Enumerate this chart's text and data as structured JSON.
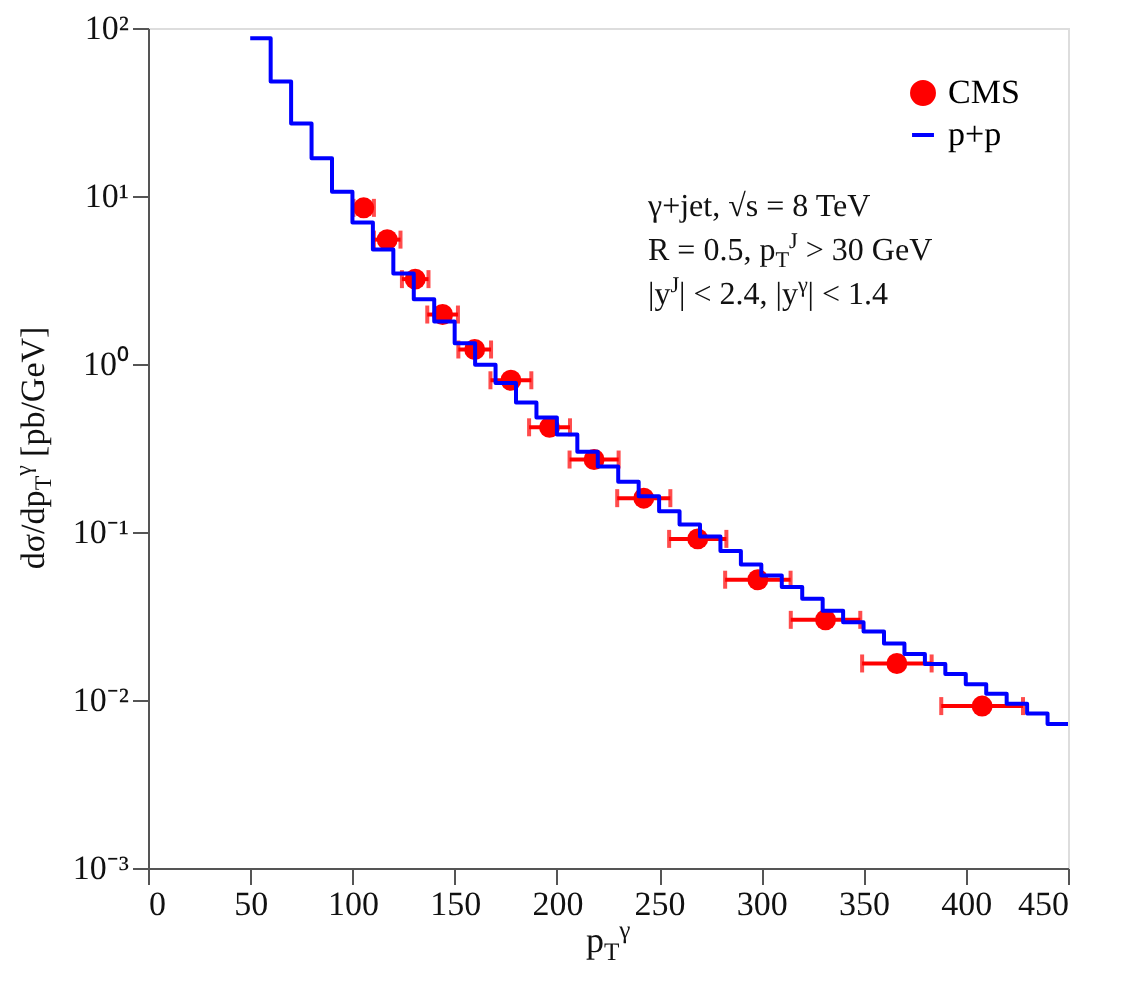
{
  "chart_data": {
    "type": "scatter",
    "xlabel": "p$_{T}$$^{γ}$",
    "ylabel": "dσ/dp$_{T}$$^{γ}$ [pb/GeV]",
    "xlim": [
      0,
      450
    ],
    "xticks": [
      0,
      50,
      100,
      150,
      200,
      250,
      300,
      350,
      400,
      450
    ],
    "ylim": [
      0.001,
      100
    ],
    "yticks": [
      {
        "value": 0.001,
        "label": "10⁻³"
      },
      {
        "value": 0.01,
        "label": "10⁻²"
      },
      {
        "value": 0.1,
        "label": "10⁻¹"
      },
      {
        "value": 1,
        "label": "10⁰"
      },
      {
        "value": 10,
        "label": "10¹"
      },
      {
        "value": 100,
        "label": "10²"
      }
    ],
    "log": "y",
    "grid": false,
    "legend": "top right",
    "series": [
      {
        "name": "CMS",
        "color": "#ff0000",
        "marker": "circle",
        "x": [
          105.5,
          117,
          130.7,
          144.1,
          159.8,
          177.5,
          196.4,
          218.2,
          242.5,
          268.9,
          298.3,
          331.4,
          366.3,
          408
        ],
        "values": [
          8.5,
          5.5,
          3.2,
          1.97,
          1.22,
          0.8,
          0.42,
          0.27,
          0.159,
          0.091,
          0.052,
          0.03,
          0.0165,
          0.0092
        ],
        "xerrors": [
          5,
          6.5,
          6.5,
          7.5,
          8,
          10,
          10,
          12,
          13,
          14,
          16,
          17,
          17,
          20
        ]
      },
      {
        "name": "p+p",
        "type": "step",
        "color": "#0000ff",
        "marker": "none",
        "line_style": "solid",
        "x": [
          50,
          60,
          70,
          80,
          90,
          100,
          110,
          120,
          130,
          140,
          150,
          160,
          170,
          180,
          190,
          200,
          210,
          220,
          230,
          240,
          250,
          260,
          270,
          280,
          290,
          300,
          310,
          320,
          330,
          340,
          350,
          360,
          370,
          380,
          390,
          400,
          410,
          420,
          430,
          440,
          450
        ],
        "values": [
          87,
          48,
          27,
          16.8,
          10.6,
          6.95,
          4.8,
          3.46,
          2.43,
          1.79,
          1.33,
          0.99,
          0.77,
          0.59,
          0.48,
          0.38,
          0.3,
          0.245,
          0.199,
          0.163,
          0.133,
          0.111,
          0.094,
          0.077,
          0.064,
          0.055,
          0.047,
          0.04,
          0.034,
          0.029,
          0.0256,
          0.0217,
          0.0188,
          0.0164,
          0.0143,
          0.0124,
          0.0109,
          0.0095,
          0.0083,
          0.0072,
          0.0072
        ]
      }
    ],
    "annotations": [
      "γ+jet, √s = 8 TeV",
      "R = 0.5, p$_{T}$$^{J}$ > 30 GeV",
      "|y$^{J}$| < 2.4, |y$^{γ}$| < 1.4"
    ]
  }
}
